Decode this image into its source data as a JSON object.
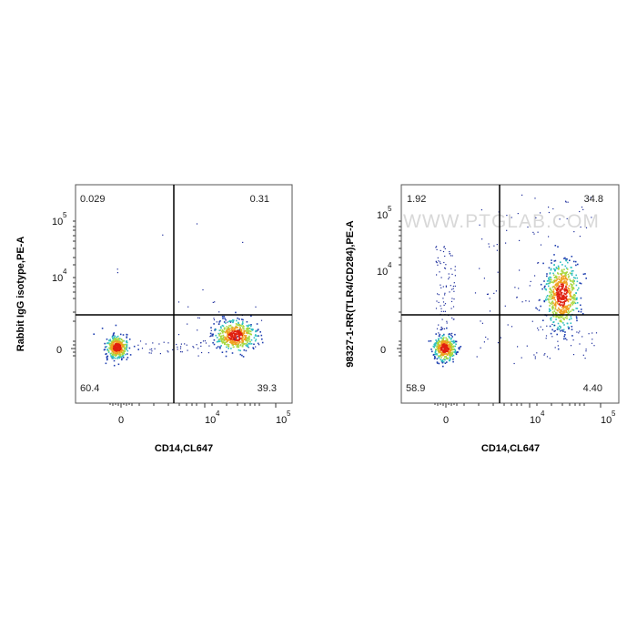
{
  "watermark": "WWW.PTGLAB.COM",
  "colors": {
    "gate": "#000000",
    "frame": "#555555",
    "dot_sparse": "#1a2a9a",
    "dot_dense": "#e02010",
    "watermark": "#d8d8d8"
  },
  "chart_data": [
    {
      "type": "scatter",
      "title": "",
      "xlabel": "CD14,CL647",
      "ylabel": "Rabbit IgG isotype,PE-A",
      "x_ticks": [
        "0",
        "10^4",
        "10^5"
      ],
      "y_ticks": [
        "0",
        "10^4",
        "10^5"
      ],
      "quadrant_percentages": {
        "upper_left": "0.029",
        "upper_right": "0.31",
        "lower_left": "60.4",
        "lower_right": "39.3"
      },
      "populations": [
        {
          "name": "CD14-negative",
          "x_center": 0,
          "y_center": 0,
          "density": "high"
        },
        {
          "name": "CD14-positive",
          "x_center": 25000,
          "y_center": 0,
          "density": "high"
        }
      ]
    },
    {
      "type": "scatter",
      "title": "",
      "xlabel": "CD14,CL647",
      "ylabel": "98327-1-RR(TLR4/CD284),PE-A",
      "x_ticks": [
        "0",
        "10^4",
        "10^5"
      ],
      "y_ticks": [
        "0",
        "10^4",
        "10^5"
      ],
      "quadrant_percentages": {
        "upper_left": "1.92",
        "upper_right": "34.8",
        "lower_left": "58.9",
        "lower_right": "4.40"
      },
      "populations": [
        {
          "name": "CD14-negative",
          "x_center": 0,
          "y_center": 0,
          "density": "high"
        },
        {
          "name": "CD14+TLR4+",
          "x_center": 28000,
          "y_center": 6000,
          "density": "high"
        }
      ]
    }
  ]
}
